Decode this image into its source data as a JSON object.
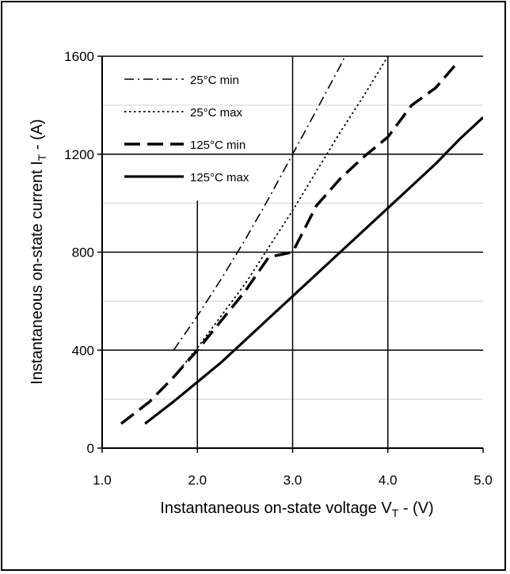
{
  "chart_data": {
    "type": "line",
    "xlabel": "Instantaneous on-state voltage V",
    "xlabel_sub": "T",
    "xlabel_unit": " -  (V)",
    "ylabel": "Instantaneous on-state current I",
    "ylabel_sub": "T",
    "ylabel_unit": " -  (A)",
    "xlim": [
      1.0,
      5.0
    ],
    "ylim": [
      0,
      1600
    ],
    "x_ticks": [
      "1.0",
      "2.0",
      "3.0",
      "4.0",
      "5.0"
    ],
    "y_ticks": [
      "0",
      "400",
      "800",
      "1200",
      "1600"
    ],
    "grid": true,
    "legend_position": "top-left",
    "series": [
      {
        "name": "25°C min",
        "style": "dash-dot",
        "x": [
          1.75,
          2.0,
          2.25,
          2.5,
          2.75,
          3.0,
          3.25,
          3.5,
          3.6
        ],
        "y": [
          400,
          540,
          690,
          850,
          1020,
          1200,
          1380,
          1560,
          1640
        ]
      },
      {
        "name": "25°C max",
        "style": "dotted",
        "x": [
          1.75,
          2.0,
          2.25,
          2.5,
          2.75,
          3.0,
          3.25,
          3.5,
          3.75,
          4.0
        ],
        "y": [
          290,
          410,
          540,
          670,
          820,
          970,
          1130,
          1290,
          1440,
          1600
        ]
      },
      {
        "name": "125°C min",
        "style": "long-dash",
        "x": [
          1.2,
          1.5,
          1.75,
          2.0,
          2.25,
          2.5,
          2.75,
          3.0,
          3.25,
          3.5,
          3.75,
          4.0,
          4.25,
          4.5,
          4.7
        ],
        "y": [
          100,
          190,
          290,
          400,
          520,
          640,
          780,
          800,
          990,
          1100,
          1190,
          1270,
          1400,
          1470,
          1560
        ]
      },
      {
        "name": "125°C max",
        "style": "solid",
        "x": [
          1.45,
          1.75,
          2.0,
          2.25,
          2.5,
          2.75,
          3.0,
          3.25,
          3.5,
          3.75,
          4.0,
          4.25,
          4.5,
          4.75,
          5.0
        ],
        "y": [
          100,
          190,
          270,
          350,
          440,
          530,
          620,
          710,
          800,
          890,
          980,
          1070,
          1160,
          1260,
          1350
        ]
      }
    ]
  }
}
